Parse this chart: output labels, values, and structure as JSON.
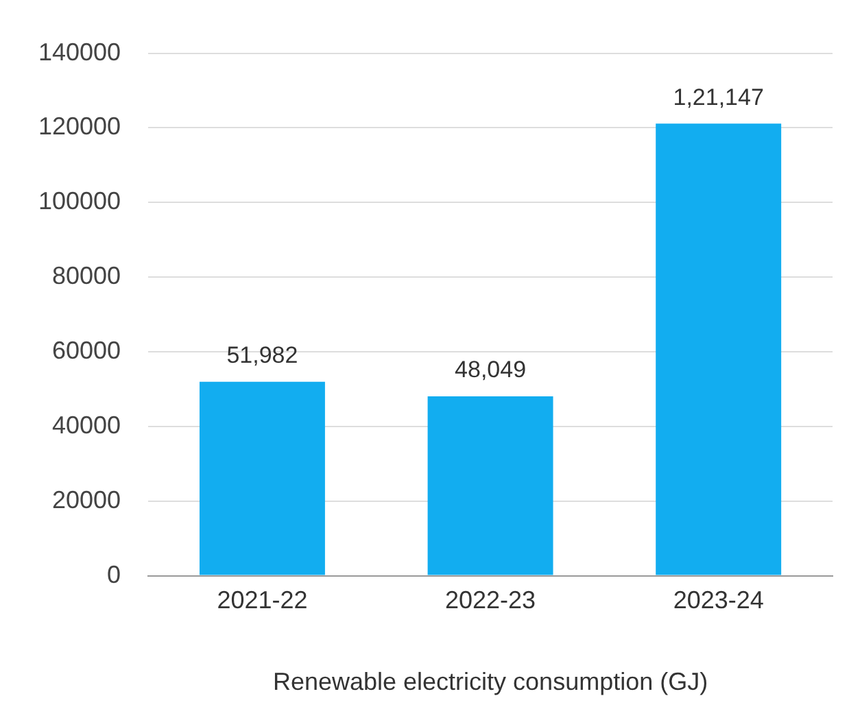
{
  "chart_data": {
    "type": "bar",
    "xlabel": "Renewable electricity consumption (GJ)",
    "categories": [
      "2021-22",
      "2022-23",
      "2023-24"
    ],
    "values": [
      51982,
      48049,
      121147
    ],
    "value_labels": [
      "51,982",
      "48,049",
      "1,21,147"
    ],
    "color": "#12adf0",
    "ylim": [
      0,
      140000
    ],
    "yticks": [
      0,
      20000,
      40000,
      60000,
      80000,
      100000,
      120000,
      140000
    ],
    "grid": "y",
    "legend": false
  }
}
